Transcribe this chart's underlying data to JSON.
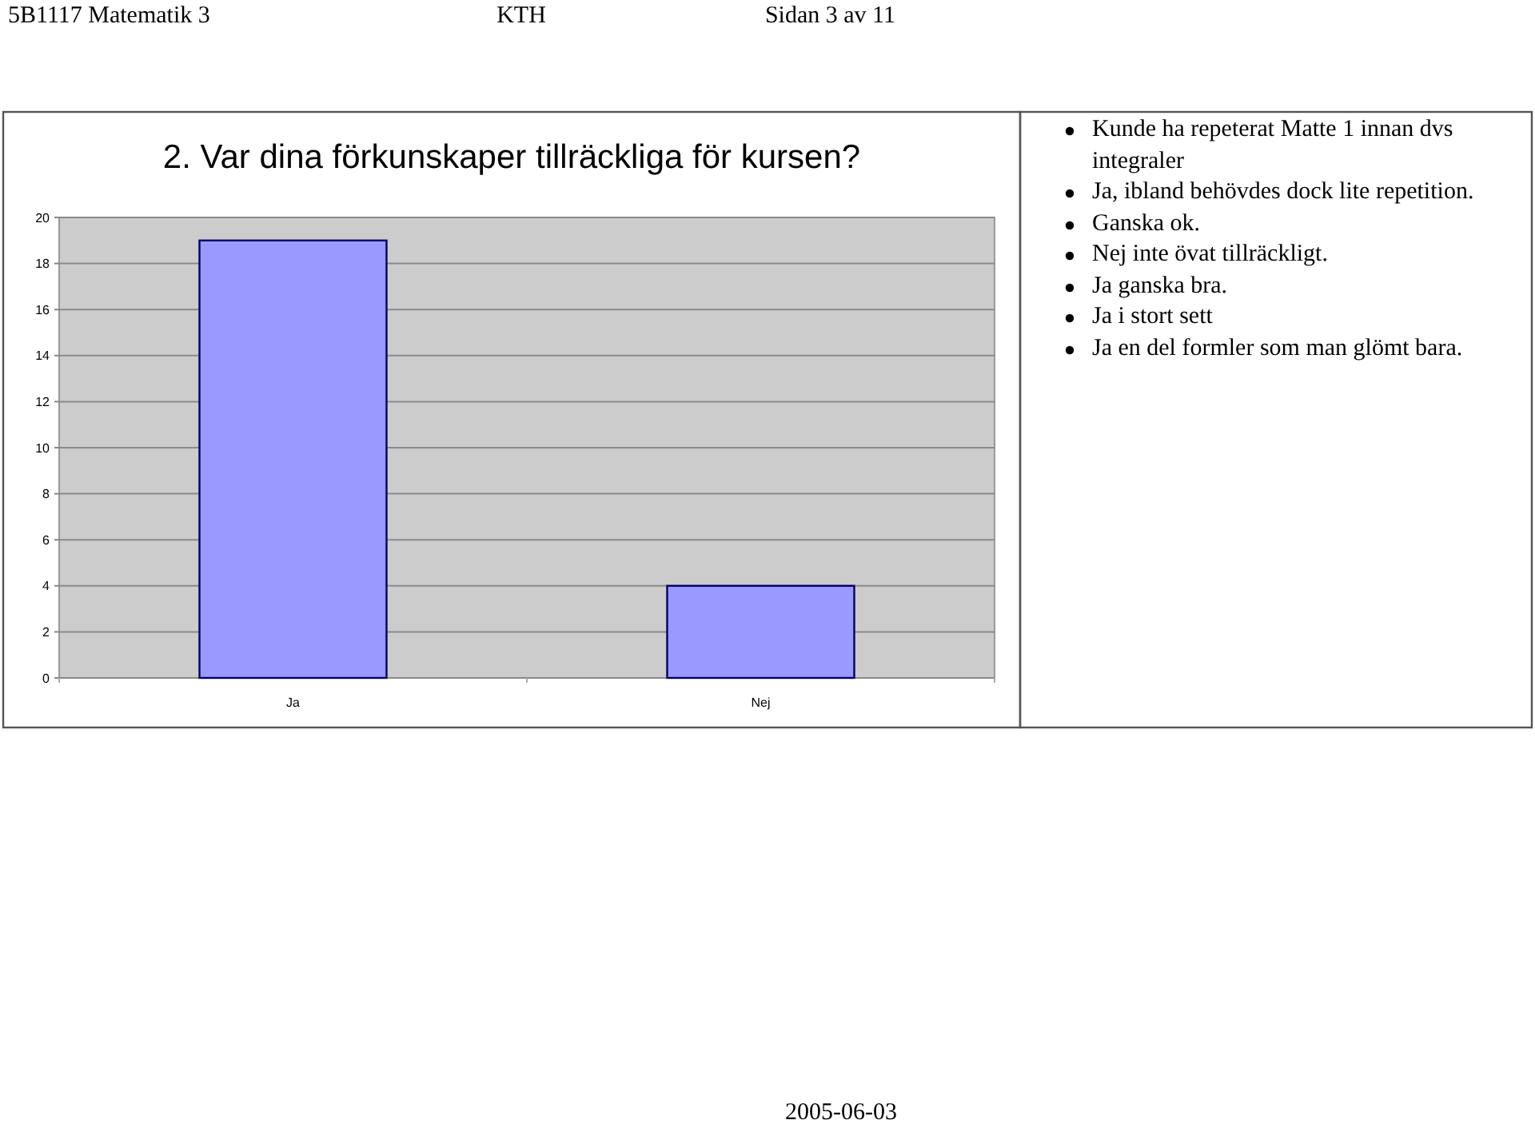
{
  "chart_data": {
    "type": "bar",
    "title": "2. Var dina förkunskaper tillräckliga för kursen?",
    "categories": [
      "Ja",
      "Nej"
    ],
    "values": [
      19,
      4
    ],
    "color": "#9999ff",
    "ylim": [
      0,
      20
    ],
    "yticks": [
      0,
      2,
      4,
      6,
      8,
      10,
      12,
      14,
      16,
      18,
      20
    ],
    "grid": "y",
    "annotations": [
      "5B1117 Matematik 3",
      "KTH",
      "Sidan 3 av 11",
      "2005-06-03",
      "Kunde ha repeterat Matte 1 innan dvs integraler",
      "Ja, ibland behövdes dock lite repetition.",
      "Ganska ok.",
      "Nej inte övat tillräckligt.",
      "Ja ganska bra.",
      "Ja i stort sett",
      "Ja en del formler som man glömt bara."
    ]
  }
}
